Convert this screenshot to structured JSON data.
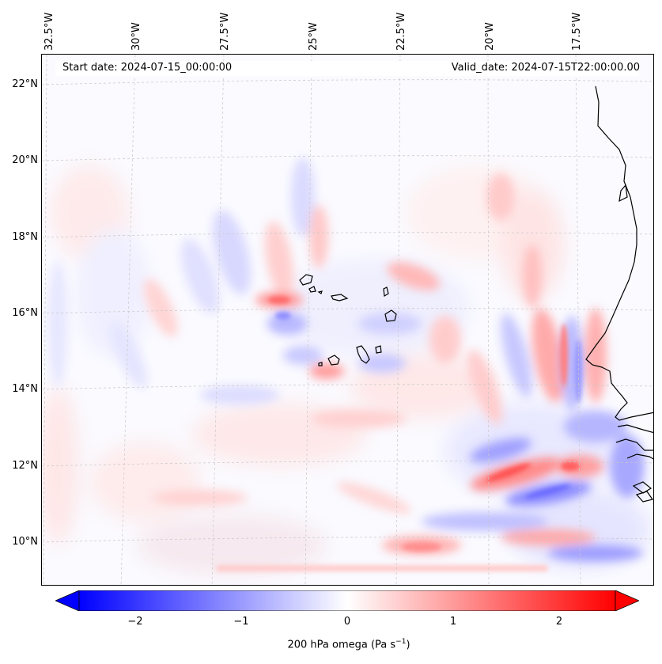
{
  "map": {
    "start_date": "Start date: 2024-07-15_00:00:00",
    "valid_date": "Valid_date: 2024-07-15T22:00:00.00",
    "longitude_labels": [
      "32.5°W",
      "30°W",
      "27.5°W",
      "25°W",
      "22.5°W",
      "20°W",
      "17.5°W"
    ],
    "latitude_labels": [
      "22°N",
      "20°N",
      "18°N",
      "16°N",
      "14°N",
      "12°N",
      "10°N"
    ],
    "field": "200 hPa omega",
    "region": "Cape Verde islands and West African coast (Senegal, Gambia, Guinea-Bissau)"
  },
  "colorbar": {
    "ticks": [
      "−2",
      "−1",
      "0",
      "1",
      "2"
    ],
    "min": -2.6,
    "max": 2.6,
    "extend": "both",
    "colormap": "bwr",
    "label_prefix": "200 hPa omega (Pa s",
    "label_exponent": "−1",
    "label_suffix": ")"
  },
  "colors": {
    "negative": "#0000ff",
    "zero": "#ffffff",
    "positive": "#ff0000",
    "grid": "#c8c8c8",
    "coastline": "#000000"
  }
}
